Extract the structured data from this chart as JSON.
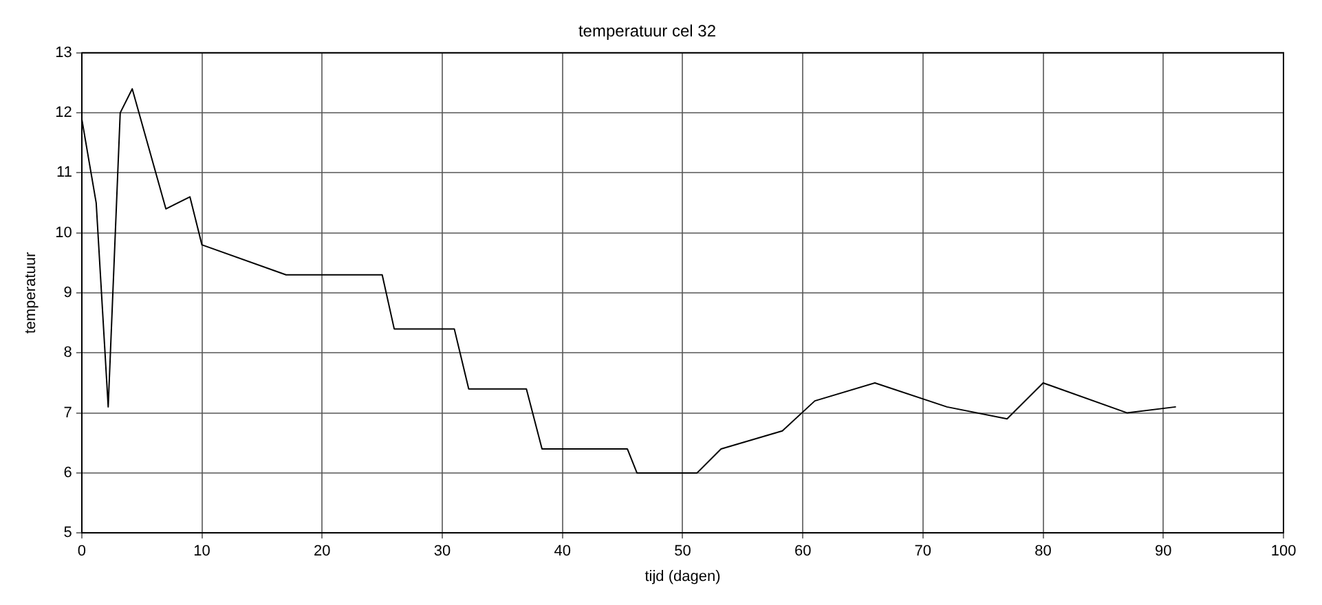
{
  "chart_data": {
    "type": "line",
    "title": "temperatuur cel 32",
    "xlabel": "tijd (dagen)",
    "ylabel": "temperatuur",
    "x": [
      0,
      1.2,
      2.2,
      3.2,
      4.2,
      7,
      9,
      10,
      17,
      25,
      26,
      31,
      32.2,
      37,
      38.3,
      45.4,
      46.2,
      51.2,
      53.2,
      58.3,
      61,
      66,
      72,
      77,
      80,
      87,
      91
    ],
    "series": [
      {
        "color": "#000000",
        "values": [
          11.9,
          10.5,
          7.1,
          12.0,
          12.4,
          10.4,
          10.6,
          9.8,
          9.3,
          9.3,
          8.4,
          8.4,
          7.4,
          7.4,
          6.4,
          6.4,
          6.0,
          6.0,
          6.4,
          6.7,
          7.2,
          7.5,
          7.1,
          6.9,
          7.5,
          7.0,
          7.1
        ]
      }
    ],
    "xlim": [
      0,
      100
    ],
    "xticks": [
      0,
      10,
      20,
      30,
      40,
      50,
      60,
      70,
      80,
      90,
      100
    ],
    "ylim": [
      5,
      13
    ],
    "yticks": [
      5,
      6,
      7,
      8,
      9,
      10,
      11,
      12,
      13
    ],
    "grid": true,
    "marker": "none",
    "line_style": "solid"
  }
}
